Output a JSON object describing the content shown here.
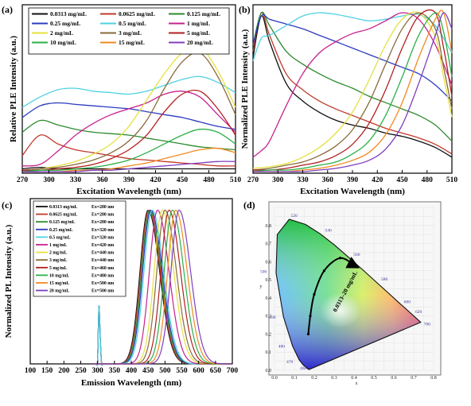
{
  "colors": {
    "series": [
      "#111111",
      "#c0392b",
      "#2d8a2d",
      "#2b3bbf",
      "#4fd2e0",
      "#c8208f",
      "#e6e040",
      "#8a6a3a",
      "#b21f1f",
      "#2ab048",
      "#f08a20",
      "#7f3fbf"
    ]
  },
  "chart_data": [
    {
      "panel": "(a)",
      "type": "line",
      "xlabel": "Excitation Wavelength (nm)",
      "ylabel": "Relative PLE Intensity (a.u.)",
      "xlim": [
        270,
        510
      ],
      "xticks": [
        "270",
        "300",
        "330",
        "360",
        "390",
        "420",
        "450",
        "480",
        "510"
      ],
      "legend_position": "top",
      "series": [
        {
          "name": "0.0313 mg/mL",
          "x": [
            270,
            290,
            310,
            330,
            350,
            370,
            390,
            410,
            430,
            450,
            470,
            490,
            510
          ],
          "values": [
            0.03,
            0.04,
            0.03,
            0.03,
            0.03,
            0.03,
            0.03,
            0.03,
            0.03,
            0.03,
            0.03,
            0.03,
            0.03
          ]
        },
        {
          "name": "0.0625 mg/mL",
          "x": [
            270,
            290,
            310,
            330,
            350,
            370,
            390,
            410,
            430,
            450,
            470,
            490,
            510
          ],
          "values": [
            0.12,
            0.26,
            0.2,
            0.16,
            0.14,
            0.12,
            0.1,
            0.09,
            0.08,
            0.07,
            0.06,
            0.05,
            0.05
          ]
        },
        {
          "name": "0.125 mg/mL",
          "x": [
            270,
            290,
            310,
            330,
            350,
            370,
            390,
            410,
            430,
            450,
            470,
            490,
            510
          ],
          "values": [
            0.28,
            0.36,
            0.33,
            0.3,
            0.28,
            0.27,
            0.26,
            0.24,
            0.22,
            0.2,
            0.18,
            0.17,
            0.16
          ]
        },
        {
          "name": "0.25 mg/mL",
          "x": [
            270,
            290,
            310,
            330,
            350,
            370,
            390,
            410,
            430,
            450,
            470,
            490,
            510
          ],
          "values": [
            0.38,
            0.46,
            0.48,
            0.47,
            0.46,
            0.45,
            0.44,
            0.42,
            0.4,
            0.38,
            0.35,
            0.32,
            0.3
          ]
        },
        {
          "name": "0.5 mg/mL",
          "x": [
            270,
            290,
            310,
            330,
            350,
            370,
            390,
            410,
            430,
            450,
            470,
            490,
            510
          ],
          "values": [
            0.45,
            0.52,
            0.57,
            0.58,
            0.56,
            0.55,
            0.54,
            0.56,
            0.6,
            0.64,
            0.66,
            0.62,
            0.55
          ]
        },
        {
          "name": "1 mg/mL",
          "x": [
            270,
            290,
            310,
            330,
            350,
            370,
            390,
            410,
            430,
            450,
            470,
            490,
            510
          ],
          "values": [
            0.05,
            0.06,
            0.15,
            0.26,
            0.34,
            0.4,
            0.44,
            0.48,
            0.54,
            0.56,
            0.52,
            0.4,
            0.28
          ]
        },
        {
          "name": "2 mg/mL",
          "x": [
            270,
            290,
            310,
            330,
            350,
            370,
            390,
            410,
            430,
            450,
            470,
            490,
            510
          ],
          "values": [
            0.02,
            0.03,
            0.05,
            0.08,
            0.13,
            0.2,
            0.32,
            0.5,
            0.68,
            0.82,
            0.86,
            0.7,
            0.45
          ]
        },
        {
          "name": "3 mg/mL",
          "x": [
            270,
            290,
            310,
            330,
            350,
            370,
            390,
            410,
            430,
            450,
            470,
            490,
            510
          ],
          "values": [
            0.02,
            0.03,
            0.04,
            0.06,
            0.09,
            0.14,
            0.22,
            0.36,
            0.58,
            0.76,
            0.82,
            0.66,
            0.4
          ]
        },
        {
          "name": "5 mg/mL",
          "x": [
            270,
            290,
            310,
            330,
            350,
            370,
            390,
            410,
            430,
            450,
            470,
            490,
            510
          ],
          "values": [
            0.02,
            0.02,
            0.03,
            0.04,
            0.06,
            0.1,
            0.16,
            0.26,
            0.42,
            0.54,
            0.56,
            0.44,
            0.26
          ]
        },
        {
          "name": "10 mg/mL",
          "x": [
            270,
            290,
            310,
            330,
            350,
            370,
            390,
            410,
            430,
            450,
            470,
            490,
            510
          ],
          "values": [
            0.01,
            0.02,
            0.02,
            0.03,
            0.04,
            0.06,
            0.09,
            0.14,
            0.2,
            0.26,
            0.3,
            0.28,
            0.2
          ]
        },
        {
          "name": "15 mg/mL",
          "x": [
            270,
            290,
            310,
            330,
            350,
            370,
            390,
            410,
            430,
            450,
            470,
            490,
            510
          ],
          "values": [
            0.01,
            0.01,
            0.01,
            0.02,
            0.02,
            0.03,
            0.05,
            0.07,
            0.1,
            0.13,
            0.16,
            0.17,
            0.14
          ]
        },
        {
          "name": "20 mg/mL",
          "x": [
            270,
            290,
            310,
            330,
            350,
            370,
            390,
            410,
            430,
            450,
            470,
            490,
            510
          ],
          "values": [
            0.01,
            0.01,
            0.01,
            0.01,
            0.02,
            0.02,
            0.03,
            0.04,
            0.05,
            0.06,
            0.07,
            0.08,
            0.08
          ]
        }
      ]
    },
    {
      "panel": "(b)",
      "type": "line",
      "xlabel": "Excitation Wavelength (nm)",
      "ylabel": "Normalized PLE Intensity (a.u.)",
      "xlim": [
        270,
        510
      ],
      "xticks": [
        "270",
        "300",
        "330",
        "360",
        "390",
        "420",
        "450",
        "480",
        "510"
      ],
      "series": [
        {
          "name": "0.0313 mg/mL",
          "x": [
            270,
            280,
            290,
            310,
            330,
            350,
            370,
            390,
            410,
            430,
            450,
            470,
            490,
            510
          ],
          "values": [
            0.72,
            0.98,
            0.82,
            0.56,
            0.45,
            0.38,
            0.33,
            0.3,
            0.28,
            0.25,
            0.23,
            0.2,
            0.16,
            0.1
          ]
        },
        {
          "name": "0.0625 mg/mL",
          "x": [
            270,
            280,
            290,
            310,
            330,
            350,
            370,
            390,
            410,
            430,
            450,
            470,
            490,
            510
          ],
          "values": [
            0.76,
            1.0,
            0.86,
            0.62,
            0.52,
            0.45,
            0.4,
            0.36,
            0.32,
            0.28,
            0.25,
            0.22,
            0.18,
            0.12
          ]
        },
        {
          "name": "0.125 mg/mL",
          "x": [
            270,
            280,
            290,
            310,
            330,
            350,
            370,
            390,
            410,
            430,
            450,
            470,
            490,
            510
          ],
          "values": [
            0.8,
            1.0,
            0.92,
            0.76,
            0.68,
            0.62,
            0.57,
            0.53,
            0.48,
            0.44,
            0.4,
            0.36,
            0.3,
            0.2
          ]
        },
        {
          "name": "0.25 mg/mL",
          "x": [
            270,
            280,
            290,
            310,
            330,
            350,
            370,
            390,
            410,
            430,
            450,
            470,
            490,
            510
          ],
          "values": [
            0.8,
            0.98,
            0.96,
            0.93,
            0.9,
            0.86,
            0.82,
            0.78,
            0.74,
            0.7,
            0.66,
            0.62,
            0.55,
            0.45
          ]
        },
        {
          "name": "0.5 mg/mL",
          "x": [
            270,
            280,
            290,
            310,
            330,
            350,
            370,
            390,
            410,
            430,
            450,
            470,
            490,
            510
          ],
          "values": [
            0.7,
            0.84,
            0.86,
            0.92,
            0.98,
            1.0,
            0.99,
            0.97,
            0.95,
            0.96,
            0.98,
            0.99,
            0.92,
            0.75
          ]
        },
        {
          "name": "1 mg/mL",
          "x": [
            270,
            280,
            290,
            310,
            330,
            350,
            370,
            390,
            410,
            430,
            450,
            470,
            490,
            510
          ],
          "values": [
            0.1,
            0.14,
            0.2,
            0.42,
            0.62,
            0.75,
            0.82,
            0.87,
            0.9,
            0.95,
            1.0,
            0.96,
            0.8,
            0.55
          ]
        },
        {
          "name": "2 mg/mL",
          "x": [
            270,
            290,
            310,
            330,
            350,
            370,
            390,
            410,
            430,
            450,
            470,
            490,
            500,
            510
          ],
          "values": [
            0.03,
            0.04,
            0.06,
            0.1,
            0.16,
            0.25,
            0.38,
            0.58,
            0.8,
            0.96,
            1.0,
            0.85,
            0.6,
            0.35
          ]
        },
        {
          "name": "3 mg/mL",
          "x": [
            270,
            290,
            310,
            330,
            350,
            370,
            390,
            410,
            430,
            450,
            470,
            490,
            500,
            510
          ],
          "values": [
            0.02,
            0.03,
            0.05,
            0.07,
            0.11,
            0.17,
            0.27,
            0.44,
            0.68,
            0.9,
            1.0,
            0.9,
            0.66,
            0.4
          ]
        },
        {
          "name": "5 mg/mL",
          "x": [
            270,
            290,
            310,
            330,
            350,
            370,
            390,
            410,
            430,
            450,
            470,
            490,
            500,
            510
          ],
          "values": [
            0.02,
            0.02,
            0.03,
            0.05,
            0.07,
            0.11,
            0.18,
            0.31,
            0.52,
            0.78,
            0.98,
            1.0,
            0.78,
            0.48
          ]
        },
        {
          "name": "10 mg/mL",
          "x": [
            270,
            290,
            310,
            330,
            350,
            370,
            390,
            410,
            430,
            450,
            470,
            490,
            500,
            510
          ],
          "values": [
            0.01,
            0.02,
            0.02,
            0.03,
            0.05,
            0.07,
            0.12,
            0.2,
            0.36,
            0.6,
            0.86,
            1.0,
            0.88,
            0.6
          ]
        },
        {
          "name": "15 mg/mL",
          "x": [
            270,
            290,
            310,
            330,
            350,
            370,
            390,
            410,
            430,
            450,
            470,
            490,
            500,
            510
          ],
          "values": [
            0.01,
            0.01,
            0.01,
            0.02,
            0.03,
            0.05,
            0.08,
            0.13,
            0.24,
            0.44,
            0.72,
            0.96,
            1.0,
            0.75
          ]
        },
        {
          "name": "20 mg/mL",
          "x": [
            270,
            290,
            310,
            330,
            350,
            370,
            390,
            410,
            430,
            450,
            470,
            490,
            500,
            510
          ],
          "values": [
            0.01,
            0.01,
            0.01,
            0.01,
            0.02,
            0.03,
            0.05,
            0.08,
            0.15,
            0.3,
            0.56,
            0.86,
            1.0,
            0.9
          ]
        }
      ]
    },
    {
      "panel": "(c)",
      "type": "line",
      "xlabel": "Emission Wavelength (nm)",
      "ylabel": "Normalized PL Intensity (a.u.)",
      "xlim": [
        100,
        700
      ],
      "xticks": [
        "100",
        "150",
        "200",
        "250",
        "300",
        "350",
        "400",
        "450",
        "500",
        "550",
        "600",
        "650",
        "700"
      ],
      "legend_position": "top-left",
      "series": [
        {
          "name": "0.0313 mg/mL",
          "excitation": "Ex=280 nm",
          "peak": 450
        },
        {
          "name": "0.0625 mg/mL",
          "excitation": "Ex=280 nm",
          "peak": 452
        },
        {
          "name": "0.125 mg/mL",
          "excitation": "Ex=280 nm",
          "peak": 455
        },
        {
          "name": "0.25 mg/mL",
          "excitation": "Ex=320 nm",
          "peak": 458
        },
        {
          "name": "0.5 mg/mL",
          "excitation": "Ex=320 nm",
          "peak": 462
        },
        {
          "name": "1 mg/mL",
          "excitation": "Ex=420 nm",
          "peak": 478
        },
        {
          "name": "2 mg/mL",
          "excitation": "Ex=440 nm",
          "peak": 492
        },
        {
          "name": "3 mg/mL",
          "excitation": "Ex=440 nm",
          "peak": 500
        },
        {
          "name": "5 mg/mL",
          "excitation": "Ex=460 nm",
          "peak": 512
        },
        {
          "name": "10 mg/mL",
          "excitation": "Ex=480 nm",
          "peak": 522
        },
        {
          "name": "15 mg/mL",
          "excitation": "Ex=500 nm",
          "peak": 532
        },
        {
          "name": "20 mg/mL",
          "excitation": "Ex=500 nm",
          "peak": 542
        }
      ]
    },
    {
      "panel": "(d)",
      "type": "scatter",
      "xlabel": "x",
      "ylabel": "y",
      "xlim": [
        0.0,
        0.8
      ],
      "ylim": [
        0.0,
        0.9
      ],
      "xticks": [
        "0.0",
        "0.1",
        "0.2",
        "0.3",
        "0.4",
        "0.5",
        "0.6",
        "0.7",
        "0.8"
      ],
      "yticks": [
        "0.0",
        "0.1",
        "0.2",
        "0.3",
        "0.4",
        "0.5",
        "0.6",
        "0.7",
        "0.8"
      ],
      "wavelength_labels": [
        "460",
        "470",
        "480",
        "490",
        "500",
        "520",
        "540",
        "560",
        "580",
        "600",
        "620",
        "700"
      ],
      "annotation": "0.0313–20 mg/mL",
      "points": [
        {
          "x": 0.17,
          "y": 0.2
        },
        {
          "x": 0.18,
          "y": 0.3
        },
        {
          "x": 0.2,
          "y": 0.42
        },
        {
          "x": 0.25,
          "y": 0.55
        },
        {
          "x": 0.33,
          "y": 0.62
        },
        {
          "x": 0.4,
          "y": 0.58
        }
      ]
    }
  ]
}
